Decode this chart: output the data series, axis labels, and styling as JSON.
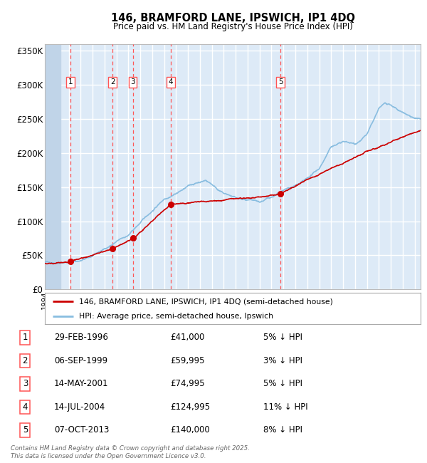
{
  "title": "146, BRAMFORD LANE, IPSWICH, IP1 4DQ",
  "subtitle": "Price paid vs. HM Land Registry's House Price Index (HPI)",
  "legend_label_red": "146, BRAMFORD LANE, IPSWICH, IP1 4DQ (semi-detached house)",
  "legend_label_blue": "HPI: Average price, semi-detached house, Ipswich",
  "footer": "Contains HM Land Registry data © Crown copyright and database right 2025.\nThis data is licensed under the Open Government Licence v3.0.",
  "sale_dates_frac": [
    1996.16,
    1999.68,
    2001.37,
    2004.54,
    2013.77
  ],
  "sale_prices": [
    41000,
    59995,
    74995,
    124995,
    140000
  ],
  "sale_labels": [
    "1",
    "2",
    "3",
    "4",
    "5"
  ],
  "table_rows": [
    [
      "1",
      "29-FEB-1996",
      "£41,000",
      "5% ↓ HPI"
    ],
    [
      "2",
      "06-SEP-1999",
      "£59,995",
      "3% ↓ HPI"
    ],
    [
      "3",
      "14-MAY-2001",
      "£74,995",
      "5% ↓ HPI"
    ],
    [
      "4",
      "14-JUL-2004",
      "£124,995",
      "11% ↓ HPI"
    ],
    [
      "5",
      "07-OCT-2013",
      "£140,000",
      "8% ↓ HPI"
    ]
  ],
  "ylim": [
    0,
    360000
  ],
  "xlim_start": 1994.0,
  "xlim_end": 2025.5,
  "hatch_end": 1995.3,
  "plot_bg": "#ddeaf7",
  "grid_color": "#ffffff",
  "red_line_color": "#cc0000",
  "blue_line_color": "#89bde0",
  "dashed_line_color": "#ff5555",
  "hatch_color": "#c0d4e8"
}
